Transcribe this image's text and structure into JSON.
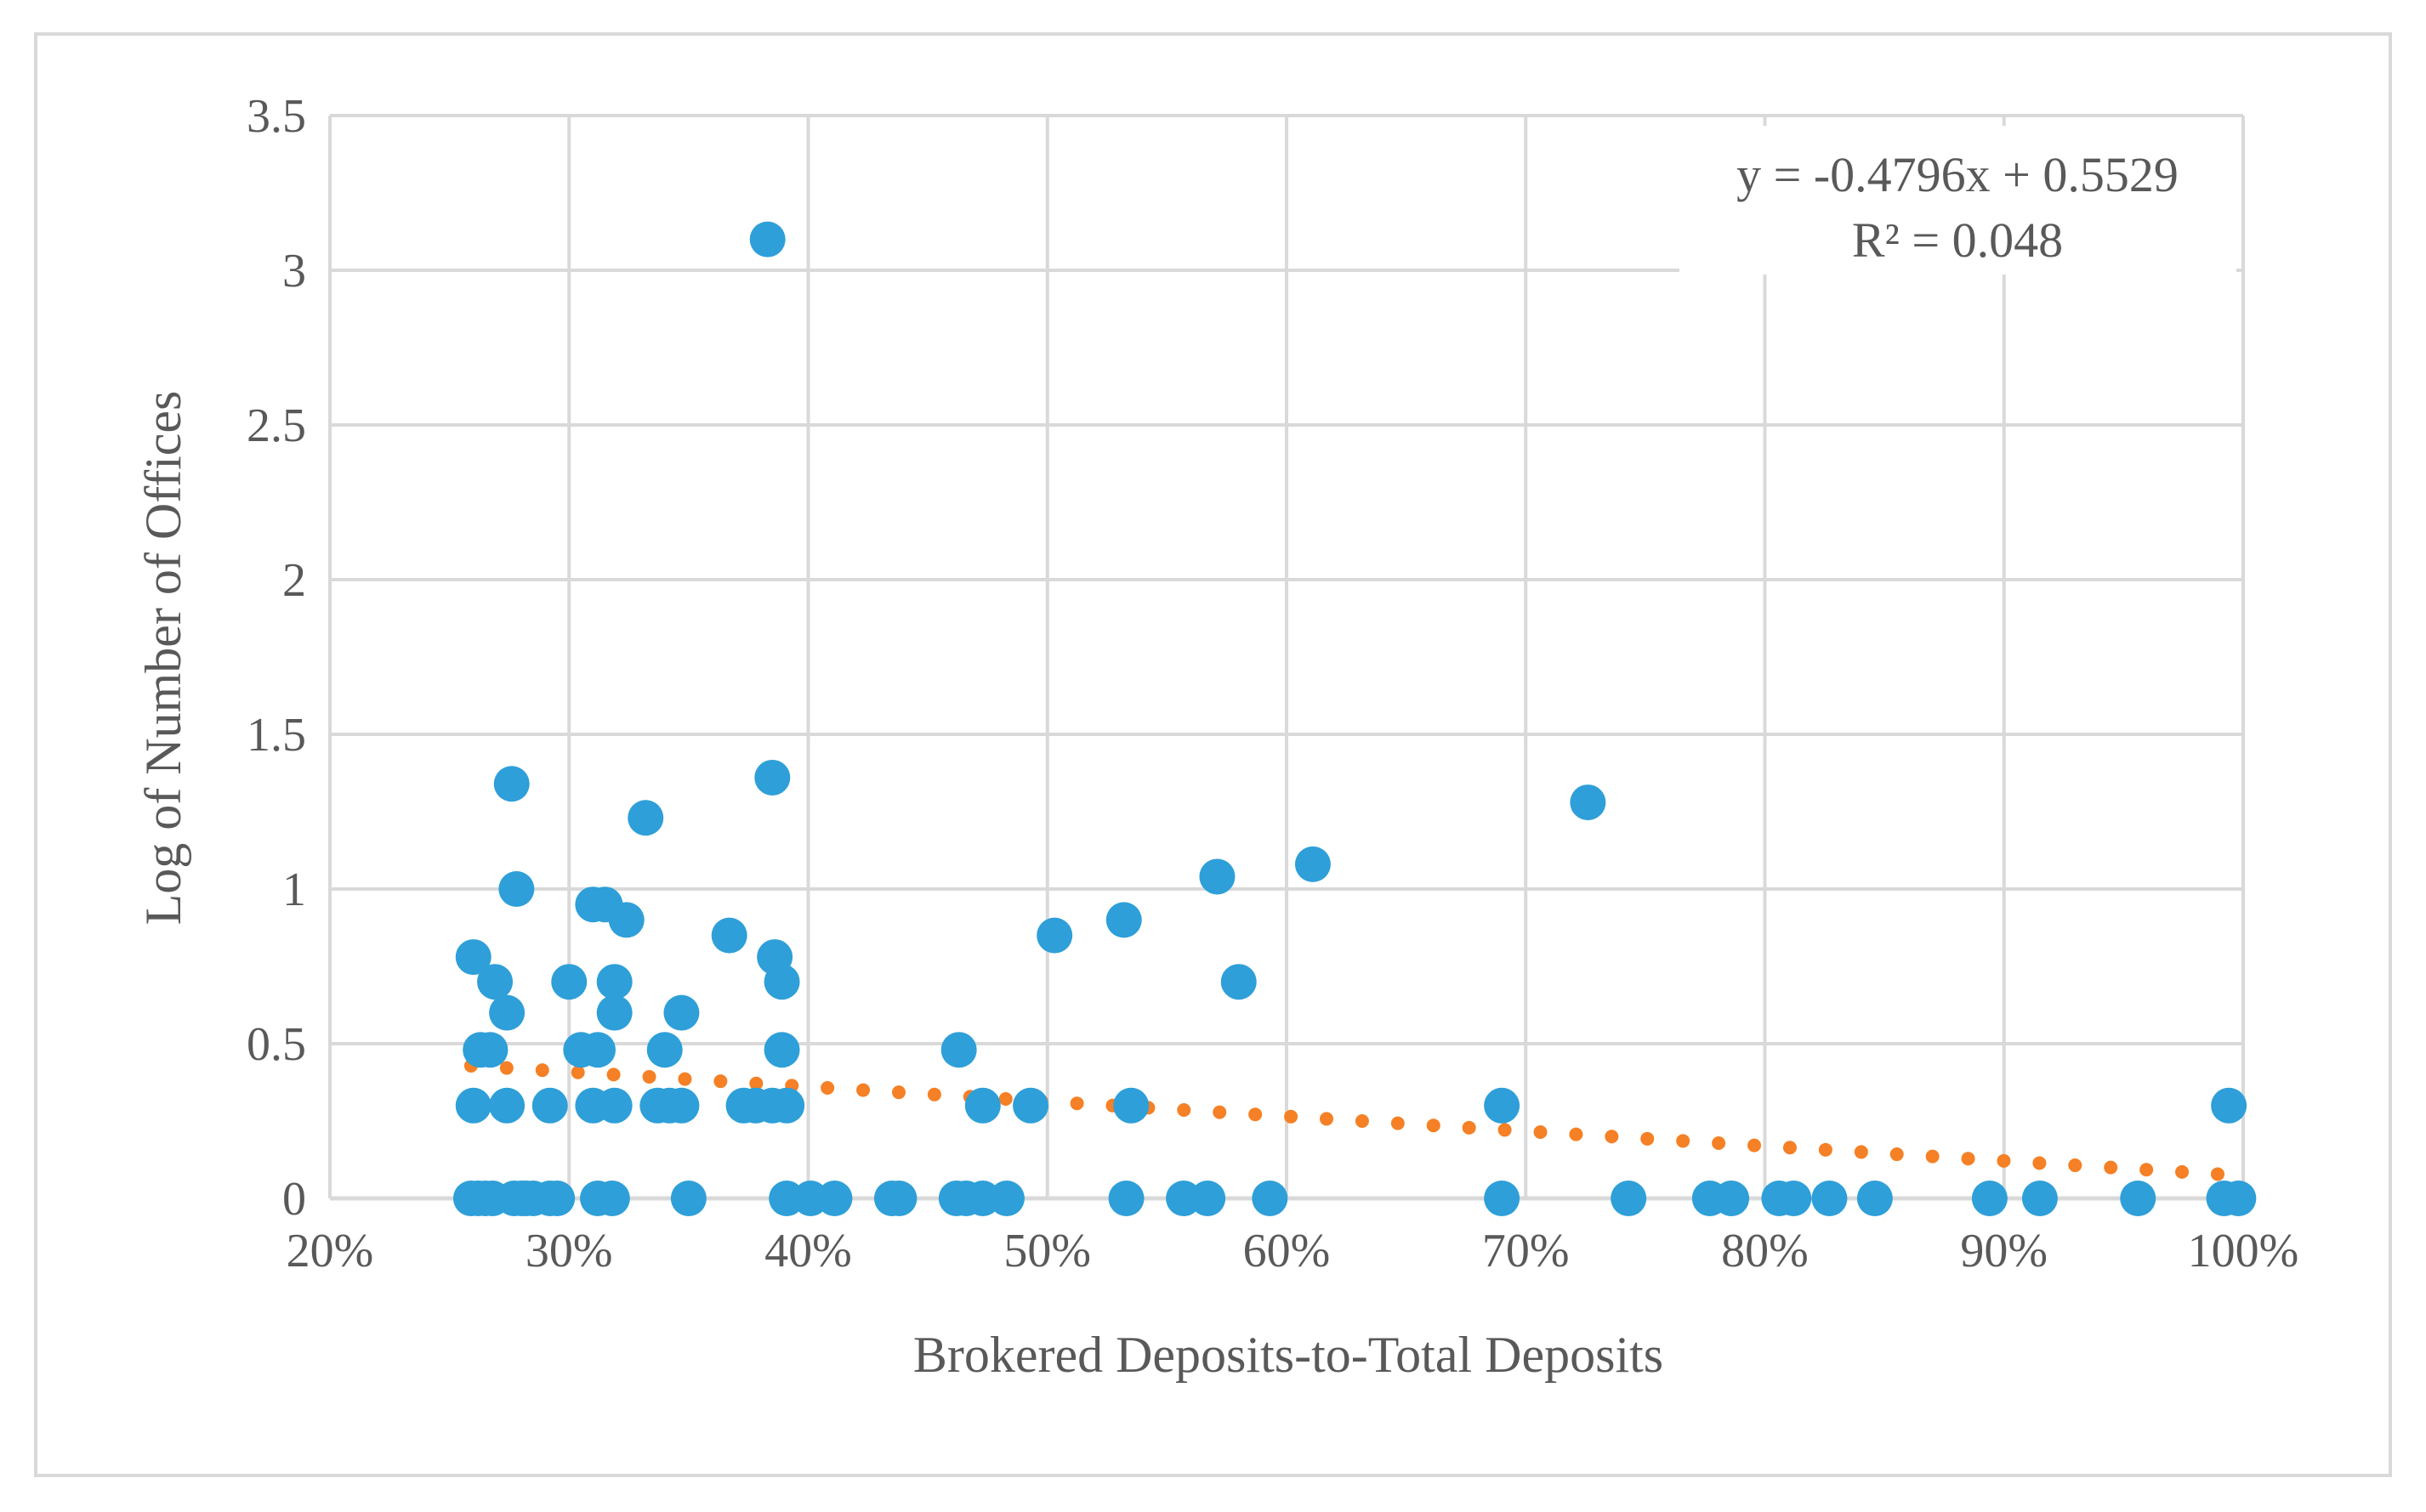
{
  "chart_data": {
    "type": "scatter",
    "title": "",
    "xlabel": "Brokered Deposits-to-Total Deposits",
    "ylabel": "Log of Number of Offices",
    "xlim": [
      0.2,
      1.0
    ],
    "ylim": [
      0,
      3.5
    ],
    "x_ticks": [
      0.2,
      0.3,
      0.4,
      0.5,
      0.6,
      0.7,
      0.8,
      0.9,
      1.0
    ],
    "x_tick_labels": [
      "20%",
      "30%",
      "40%",
      "50%",
      "60%",
      "70%",
      "80%",
      "90%",
      "100%"
    ],
    "y_ticks": [
      0,
      0.5,
      1,
      1.5,
      2,
      2.5,
      3,
      3.5
    ],
    "y_tick_labels": [
      "0",
      "0.5",
      "1",
      "1.5",
      "2",
      "2.5",
      "3",
      "3.5"
    ],
    "grid": true,
    "legend": "none",
    "colors": {
      "points": "#2e9fd8",
      "trendline": "#f58025",
      "grid": "#d9d9d9",
      "text": "#595959"
    },
    "series": [
      {
        "points": [
          [
            0.259,
            0
          ],
          [
            0.262,
            0
          ],
          [
            0.265,
            0
          ],
          [
            0.268,
            0
          ],
          [
            0.277,
            0
          ],
          [
            0.28,
            0
          ],
          [
            0.282,
            0
          ],
          [
            0.285,
            0
          ],
          [
            0.292,
            0
          ],
          [
            0.295,
            0
          ],
          [
            0.312,
            0
          ],
          [
            0.318,
            0
          ],
          [
            0.35,
            0
          ],
          [
            0.391,
            0
          ],
          [
            0.401,
            0
          ],
          [
            0.411,
            0
          ],
          [
            0.435,
            0
          ],
          [
            0.438,
            0
          ],
          [
            0.462,
            0
          ],
          [
            0.466,
            0
          ],
          [
            0.473,
            0
          ],
          [
            0.483,
            0
          ],
          [
            0.533,
            0
          ],
          [
            0.557,
            0
          ],
          [
            0.567,
            0
          ],
          [
            0.593,
            0
          ],
          [
            0.69,
            0
          ],
          [
            0.743,
            0
          ],
          [
            0.777,
            0
          ],
          [
            0.786,
            0
          ],
          [
            0.806,
            0
          ],
          [
            0.812,
            0
          ],
          [
            0.827,
            0
          ],
          [
            0.846,
            0
          ],
          [
            0.894,
            0
          ],
          [
            0.915,
            0
          ],
          [
            0.956,
            0
          ],
          [
            0.992,
            0
          ],
          [
            0.998,
            0
          ],
          [
            0.26,
            0.3
          ],
          [
            0.274,
            0.3
          ],
          [
            0.292,
            0.3
          ],
          [
            0.31,
            0.3
          ],
          [
            0.319,
            0.3
          ],
          [
            0.337,
            0.3
          ],
          [
            0.342,
            0.3
          ],
          [
            0.347,
            0.3
          ],
          [
            0.373,
            0.3
          ],
          [
            0.378,
            0.3
          ],
          [
            0.385,
            0.3
          ],
          [
            0.391,
            0.3
          ],
          [
            0.473,
            0.3
          ],
          [
            0.493,
            0.3
          ],
          [
            0.535,
            0.3
          ],
          [
            0.69,
            0.3
          ],
          [
            0.994,
            0.3
          ],
          [
            0.263,
            0.48
          ],
          [
            0.267,
            0.48
          ],
          [
            0.305,
            0.48
          ],
          [
            0.312,
            0.48
          ],
          [
            0.34,
            0.48
          ],
          [
            0.389,
            0.48
          ],
          [
            0.463,
            0.48
          ],
          [
            0.274,
            0.6
          ],
          [
            0.319,
            0.6
          ],
          [
            0.347,
            0.6
          ],
          [
            0.26,
            0.78
          ],
          [
            0.386,
            0.78
          ],
          [
            0.269,
            0.7
          ],
          [
            0.3,
            0.7
          ],
          [
            0.319,
            0.7
          ],
          [
            0.389,
            0.7
          ],
          [
            0.58,
            0.7
          ],
          [
            0.367,
            0.85
          ],
          [
            0.503,
            0.85
          ],
          [
            0.324,
            0.9
          ],
          [
            0.532,
            0.9
          ],
          [
            0.31,
            0.95
          ],
          [
            0.315,
            0.95
          ],
          [
            0.278,
            1.0
          ],
          [
            0.571,
            1.04
          ],
          [
            0.611,
            1.08
          ],
          [
            0.332,
            1.23
          ],
          [
            0.726,
            1.28
          ],
          [
            0.276,
            1.34
          ],
          [
            0.385,
            1.36
          ],
          [
            0.383,
            3.1
          ]
        ]
      }
    ],
    "trendline": {
      "type": "linear",
      "style": "dotted",
      "equation": "y = -0.4796x + 0.5529",
      "r_squared": "R² = 0.048",
      "slope": -0.4796,
      "intercept": 0.5529,
      "x_range": [
        0.259,
        0.998
      ]
    }
  }
}
